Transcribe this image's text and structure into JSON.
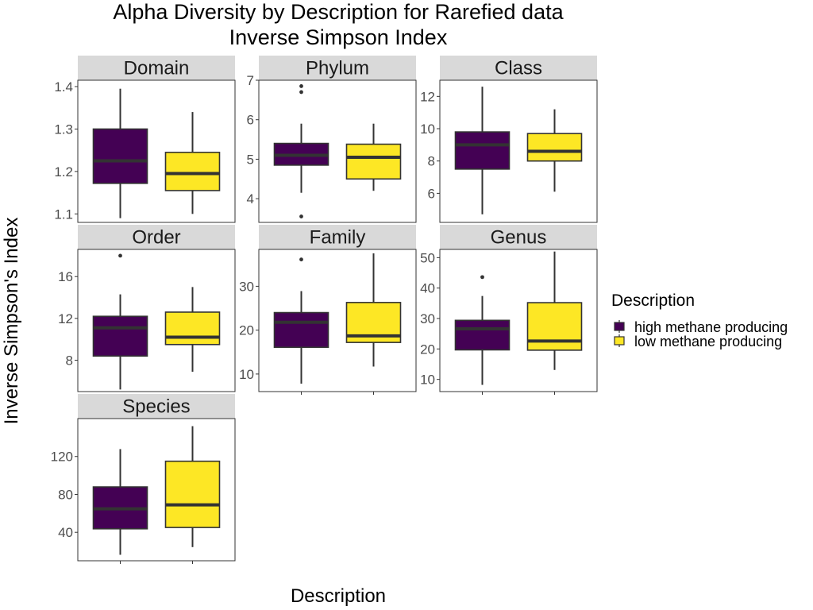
{
  "chart_data": {
    "type": "boxplot",
    "title_line1": "Alpha Diversity by Description for Rarefied data",
    "title_line2": "Inverse Simpson Index",
    "xlabel": "Description",
    "ylabel": "Inverse Simpson's Index",
    "legend": {
      "title": "Description",
      "placement": "right",
      "items": [
        {
          "label": "high methane producing",
          "color": "#440154"
        },
        {
          "label": "low methane producing",
          "color": "#FDE725"
        }
      ]
    },
    "categories": [
      "high methane producing",
      "low methane producing"
    ],
    "panels": [
      {
        "name": "Domain",
        "ylim": [
          1.08,
          1.415
        ],
        "ticks": [
          1.1,
          1.2,
          1.3,
          1.4
        ],
        "tick_labels": [
          "1.1",
          "1.2",
          "1.3",
          "1.4"
        ],
        "boxes": [
          {
            "group": "high methane producing",
            "min": 1.09,
            "q1": 1.172,
            "median": 1.225,
            "q3": 1.3,
            "max": 1.395,
            "outliers": []
          },
          {
            "group": "low methane producing",
            "min": 1.1,
            "q1": 1.155,
            "median": 1.195,
            "q3": 1.245,
            "max": 1.34,
            "outliers": []
          }
        ]
      },
      {
        "name": "Phylum",
        "ylim": [
          3.4,
          7.0
        ],
        "ticks": [
          4,
          5,
          6,
          7
        ],
        "tick_labels": [
          "4",
          "5",
          "6",
          "7"
        ],
        "boxes": [
          {
            "group": "high methane producing",
            "min": 4.15,
            "q1": 4.85,
            "median": 5.1,
            "q3": 5.4,
            "max": 5.9,
            "outliers": [
              3.55,
              6.7,
              6.85
            ]
          },
          {
            "group": "low methane producing",
            "min": 4.2,
            "q1": 4.5,
            "median": 5.05,
            "q3": 5.38,
            "max": 5.9,
            "outliers": []
          }
        ]
      },
      {
        "name": "Class",
        "ylim": [
          4.2,
          13.0
        ],
        "ticks": [
          6,
          8,
          10,
          12
        ],
        "tick_labels": [
          "6",
          "8",
          "10",
          "12"
        ],
        "boxes": [
          {
            "group": "high methane producing",
            "min": 4.7,
            "q1": 7.5,
            "median": 9.0,
            "q3": 9.8,
            "max": 12.6,
            "outliers": []
          },
          {
            "group": "low methane producing",
            "min": 6.1,
            "q1": 8.0,
            "median": 8.6,
            "q3": 9.7,
            "max": 11.2,
            "outliers": []
          }
        ]
      },
      {
        "name": "Order",
        "ylim": [
          5.0,
          18.6
        ],
        "ticks": [
          8,
          12,
          16
        ],
        "tick_labels": [
          "8",
          "12",
          "16"
        ],
        "boxes": [
          {
            "group": "high methane producing",
            "min": 5.2,
            "q1": 8.4,
            "median": 11.1,
            "q3": 12.2,
            "max": 14.3,
            "outliers": [
              18.0
            ]
          },
          {
            "group": "low methane producing",
            "min": 6.9,
            "q1": 9.5,
            "median": 10.2,
            "q3": 12.6,
            "max": 15.0,
            "outliers": []
          }
        ]
      },
      {
        "name": "Family",
        "ylim": [
          6.0,
          38.4
        ],
        "ticks": [
          10,
          20,
          30
        ],
        "tick_labels": [
          "10",
          "20",
          "30"
        ],
        "boxes": [
          {
            "group": "high methane producing",
            "min": 7.8,
            "q1": 16.1,
            "median": 21.8,
            "q3": 24.0,
            "max": 28.9,
            "outliers": [
              36.1
            ]
          },
          {
            "group": "low methane producing",
            "min": 11.7,
            "q1": 17.2,
            "median": 18.7,
            "q3": 26.3,
            "max": 37.5,
            "outliers": []
          }
        ]
      },
      {
        "name": "Genus",
        "ylim": [
          6.0,
          52.7
        ],
        "ticks": [
          10,
          20,
          30,
          40,
          50
        ],
        "tick_labels": [
          "10",
          "20",
          "30",
          "40",
          "50"
        ],
        "boxes": [
          {
            "group": "high methane producing",
            "min": 8.2,
            "q1": 19.7,
            "median": 26.6,
            "q3": 29.4,
            "max": 37.4,
            "outliers": [
              43.6
            ]
          },
          {
            "group": "low methane producing",
            "min": 13.1,
            "q1": 19.6,
            "median": 22.6,
            "q3": 35.2,
            "max": 52.0,
            "outliers": []
          }
        ]
      },
      {
        "name": "Species",
        "ylim": [
          10.0,
          160.0
        ],
        "ticks": [
          40,
          80,
          120
        ],
        "tick_labels": [
          "40",
          "80",
          "120"
        ],
        "boxes": [
          {
            "group": "high methane producing",
            "min": 16.3,
            "q1": 43.7,
            "median": 64.8,
            "q3": 87.9,
            "max": 127.8,
            "outliers": []
          },
          {
            "group": "low methane producing",
            "min": 24.4,
            "q1": 45.1,
            "median": 69.0,
            "q3": 115.0,
            "max": 152.0,
            "outliers": []
          }
        ]
      }
    ]
  }
}
